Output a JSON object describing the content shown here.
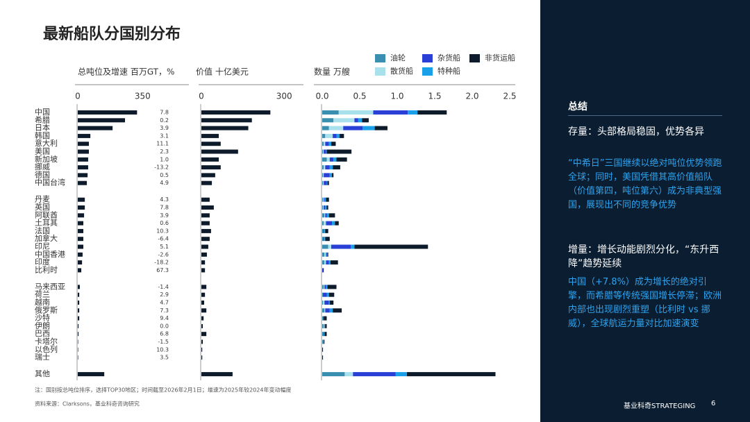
{
  "title": "最新船队分国别分布",
  "chart_data": [
    {
      "type": "bar",
      "title": "总吨位及增速 百万GT，%",
      "categories": [
        "中国",
        "希腊",
        "日本",
        "韩国",
        "意大利",
        "美国",
        "新加坡",
        "挪威",
        "德国",
        "中国台湾",
        "丹麦",
        "英国",
        "阿联酋",
        "土耳其",
        "法国",
        "加拿大",
        "印尼",
        "中国香港",
        "印度",
        "比利时",
        "马来西亚",
        "荷兰",
        "越南",
        "俄罗斯",
        "沙特",
        "伊朗",
        "巴西",
        "卡塔尔",
        "以色列",
        "瑞士",
        "其他"
      ],
      "values": [
        320,
        255,
        188,
        68,
        60,
        60,
        56,
        56,
        53,
        49,
        38,
        38,
        34,
        30,
        30,
        30,
        30,
        26,
        23,
        19,
        11,
        8,
        8,
        8,
        8,
        4,
        4,
        2,
        2,
        2,
        143
      ],
      "color": "#0d1b2a",
      "xlim": [
        0,
        600
      ],
      "xticks": [
        0,
        350
      ],
      "growth": {
        "values": [
          7.8,
          0.2,
          3.9,
          3.1,
          11.1,
          2.3,
          1,
          -13.2,
          0.5,
          4.9,
          4.3,
          7.8,
          3.9,
          0.6,
          10.3,
          -6.4,
          5.1,
          -2.6,
          -18.2,
          67.3,
          -1.4,
          2.9,
          4.7,
          7.3,
          9.4,
          0,
          6.8,
          -1.5,
          10.3,
          3.5
        ],
        "value_labels": [
          "7.8",
          "0.2",
          "3.9",
          "3.1",
          "11.1",
          "2.3",
          "1.0",
          "-13.2",
          "0.5",
          "4.9",
          "4.3",
          "7.8",
          "3.9",
          "0.6",
          "10.3",
          "-6.4",
          "5.1",
          "-2.6",
          "-18.2",
          "67.3",
          "-1.4",
          "2.9",
          "4.7",
          "7.3",
          "9.4",
          "0.0",
          "6.8",
          "-1.5",
          "10.3",
          "3.5"
        ]
      }
    },
    {
      "type": "bar",
      "title": "价值 十亿美元",
      "values": [
        250,
        183,
        170,
        63,
        70,
        133,
        63,
        70,
        50,
        38,
        30,
        45,
        30,
        30,
        35,
        30,
        25,
        20,
        13,
        13,
        18,
        13,
        10,
        18,
        8,
        5,
        18,
        5,
        3,
        3,
        113
      ],
      "color": "#0d1b2a",
      "xlim": [
        0,
        370
      ],
      "xticks": [
        0,
        300
      ]
    },
    {
      "type": "stacked_bar",
      "title": "数量 万艘",
      "xlim": [
        0,
        2.5
      ],
      "xticks": [
        {
          "value": 0,
          "label": "0.0"
        },
        0.5,
        {
          "value": 1,
          "label": "1.0"
        },
        1.5,
        {
          "value": 2,
          "label": "2.0"
        },
        2.5
      ],
      "series": [
        {
          "name": "油轮",
          "color": "#3a8fb0",
          "values": [
            0.22,
            0.15,
            0.09,
            0.04,
            0.02,
            0.01,
            0.06,
            0.02,
            0.01,
            0.01,
            0.01,
            0.01,
            0.03,
            0.02,
            0.01,
            0.01,
            0.08,
            0.03,
            0.03,
            0,
            0.02,
            0.01,
            0.01,
            0.03,
            0.01,
            0.02,
            0.01,
            0.01,
            0,
            0,
            0.3
          ]
        },
        {
          "name": "散货船",
          "color": "#a8e0ec",
          "values": [
            0.46,
            0.28,
            0.19,
            0.1,
            0.02,
            0.01,
            0.04,
            0.02,
            0.01,
            0.01,
            0.01,
            0.01,
            0.01,
            0.03,
            0,
            0,
            0.04,
            0.02,
            0.02,
            0,
            0.01,
            0,
            0.02,
            0.01,
            0,
            0.01,
            0,
            0,
            0,
            0,
            0.11
          ]
        },
        {
          "name": "杂货船",
          "color": "#2a3fd6",
          "values": [
            0.46,
            0.05,
            0.26,
            0.05,
            0.05,
            0.03,
            0.05,
            0.06,
            0.08,
            0.04,
            0.01,
            0.02,
            0.02,
            0.08,
            0.01,
            0.01,
            0.26,
            0.01,
            0.04,
            0.01,
            0.02,
            0.05,
            0.06,
            0.06,
            0.01,
            0.01,
            0.01,
            0,
            0,
            0,
            0.57
          ]
        },
        {
          "name": "特种船",
          "color": "#1aa0e8",
          "values": [
            0.13,
            0.05,
            0.16,
            0.04,
            0.03,
            0.01,
            0.04,
            0.04,
            0.03,
            0.01,
            0.02,
            0.02,
            0.03,
            0.04,
            0.02,
            0.02,
            0.05,
            0.01,
            0.02,
            0,
            0.02,
            0.03,
            0.01,
            0.04,
            0,
            0,
            0.01,
            0.01,
            0,
            0,
            0.15
          ]
        },
        {
          "name": "非货运船",
          "color": "#0d1b2a",
          "values": [
            0.39,
            0.09,
            0.17,
            0.06,
            0.06,
            0.33,
            0.14,
            0.1,
            0.02,
            0.02,
            0.04,
            0.02,
            0.08,
            0.05,
            0.04,
            0.06,
            0.98,
            0.01,
            0.1,
            0.01,
            0.12,
            0.07,
            0.05,
            0.12,
            0.04,
            0.02,
            0.03,
            0.01,
            0.01,
            0.01,
            1.18
          ]
        }
      ]
    }
  ],
  "summary": {
    "heading": "总结",
    "sections": [
      {
        "title": "存量：头部格局稳固，优势各异",
        "body": "“中希日”三国继续以绝对吨位优势领跑全球；同时，美国凭借其高价值船队（价值第四，吨位第六）成为非典型强国，展现出不同的竞争优势"
      },
      {
        "title": "增量：增长动能剧烈分化，“东升西降”趋势延续",
        "body": "中国（+7.8%）成为增长的绝对引擎，而希腊等传统强国增长停滞；欧洲内部也出现剧烈重塑（比利时 vs 挪威），全球航运力量对比加速演变"
      }
    ]
  },
  "notes": [
    "注：国别按总吨位排序，选择TOP30地区；时间截至2026年2月1日；增速为2025年较2024年变动幅度",
    "资料来源：Clarksons，基业科奇咨询研究"
  ],
  "footer": {
    "brand": "基业科奇STRATEGING",
    "page": "6"
  }
}
